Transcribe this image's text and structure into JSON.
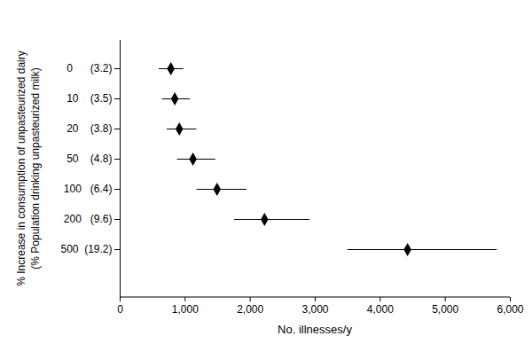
{
  "chart_data": {
    "type": "dot",
    "orientation": "horizontal",
    "x_label": "No. illnesses/y",
    "y_label": "% Increase in consumption of unpasteurized dairy\n(% Population drinking unpasteurized milk)",
    "categories": [
      "0      (3.2)",
      "10    (3.5)",
      "20    (3.8)",
      "50    (4.8)",
      "100   (6.4)",
      "200   (9.6)",
      "500  (19.2)"
    ],
    "values": [
      780,
      840,
      910,
      1120,
      1490,
      2220,
      4420
    ],
    "error_lower": [
      600,
      650,
      720,
      880,
      1180,
      1760,
      3500
    ],
    "error_upper": [
      980,
      1080,
      1180,
      1470,
      1950,
      2920,
      5800
    ],
    "color": "#000000",
    "marker": "diamond",
    "xlim": [
      0,
      6000
    ],
    "xticks": [
      0,
      {
        "value": 1000,
        "label": "1,000"
      },
      {
        "value": 2000,
        "label": "2,000"
      },
      {
        "value": 3000,
        "label": "3,000"
      },
      {
        "value": 4000,
        "label": "4,000"
      },
      {
        "value": 5000,
        "label": "5,000"
      },
      {
        "value": 6000,
        "label": "6,000"
      }
    ],
    "grid": false
  }
}
